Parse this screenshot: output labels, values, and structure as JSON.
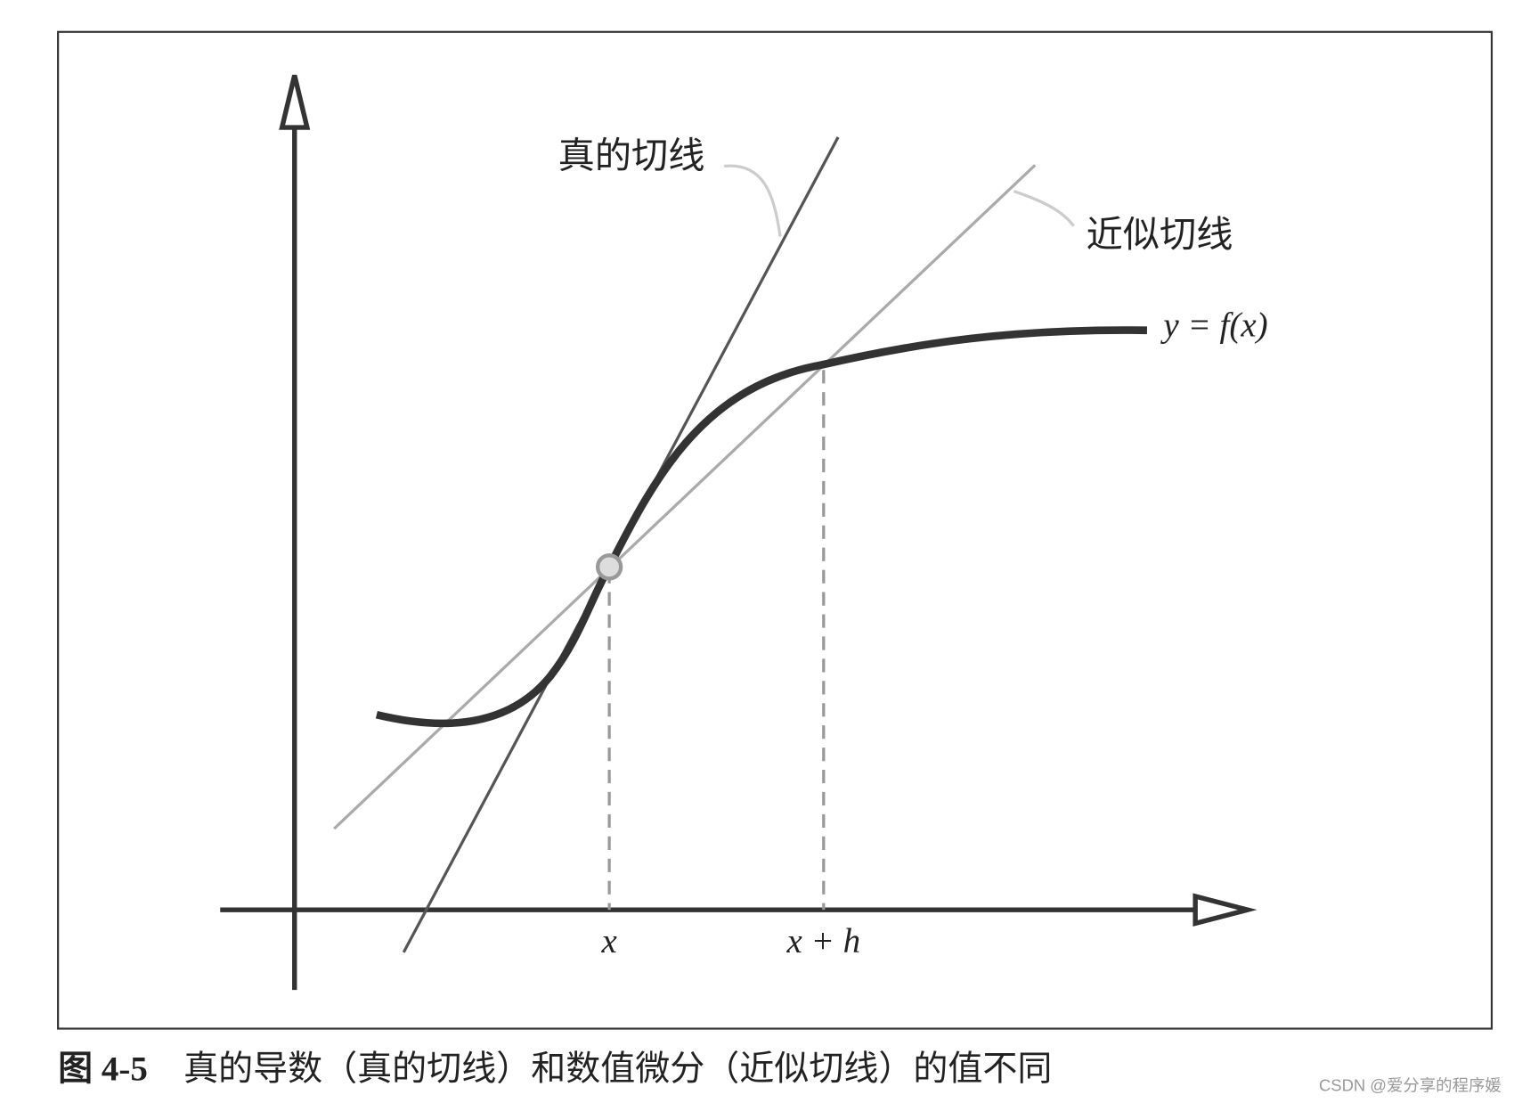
{
  "diagram": {
    "labels": {
      "true_tangent": "真的切线",
      "approx_tangent": "近似切线",
      "function": "y = f(x)",
      "x": "x",
      "x_plus_h": "x + h"
    },
    "caption": {
      "number": "图 4-5",
      "text": "真的导数（真的切线）和数值微分（近似切线）的值不同"
    },
    "watermark": "CSDN @爱分享的程序媛"
  }
}
